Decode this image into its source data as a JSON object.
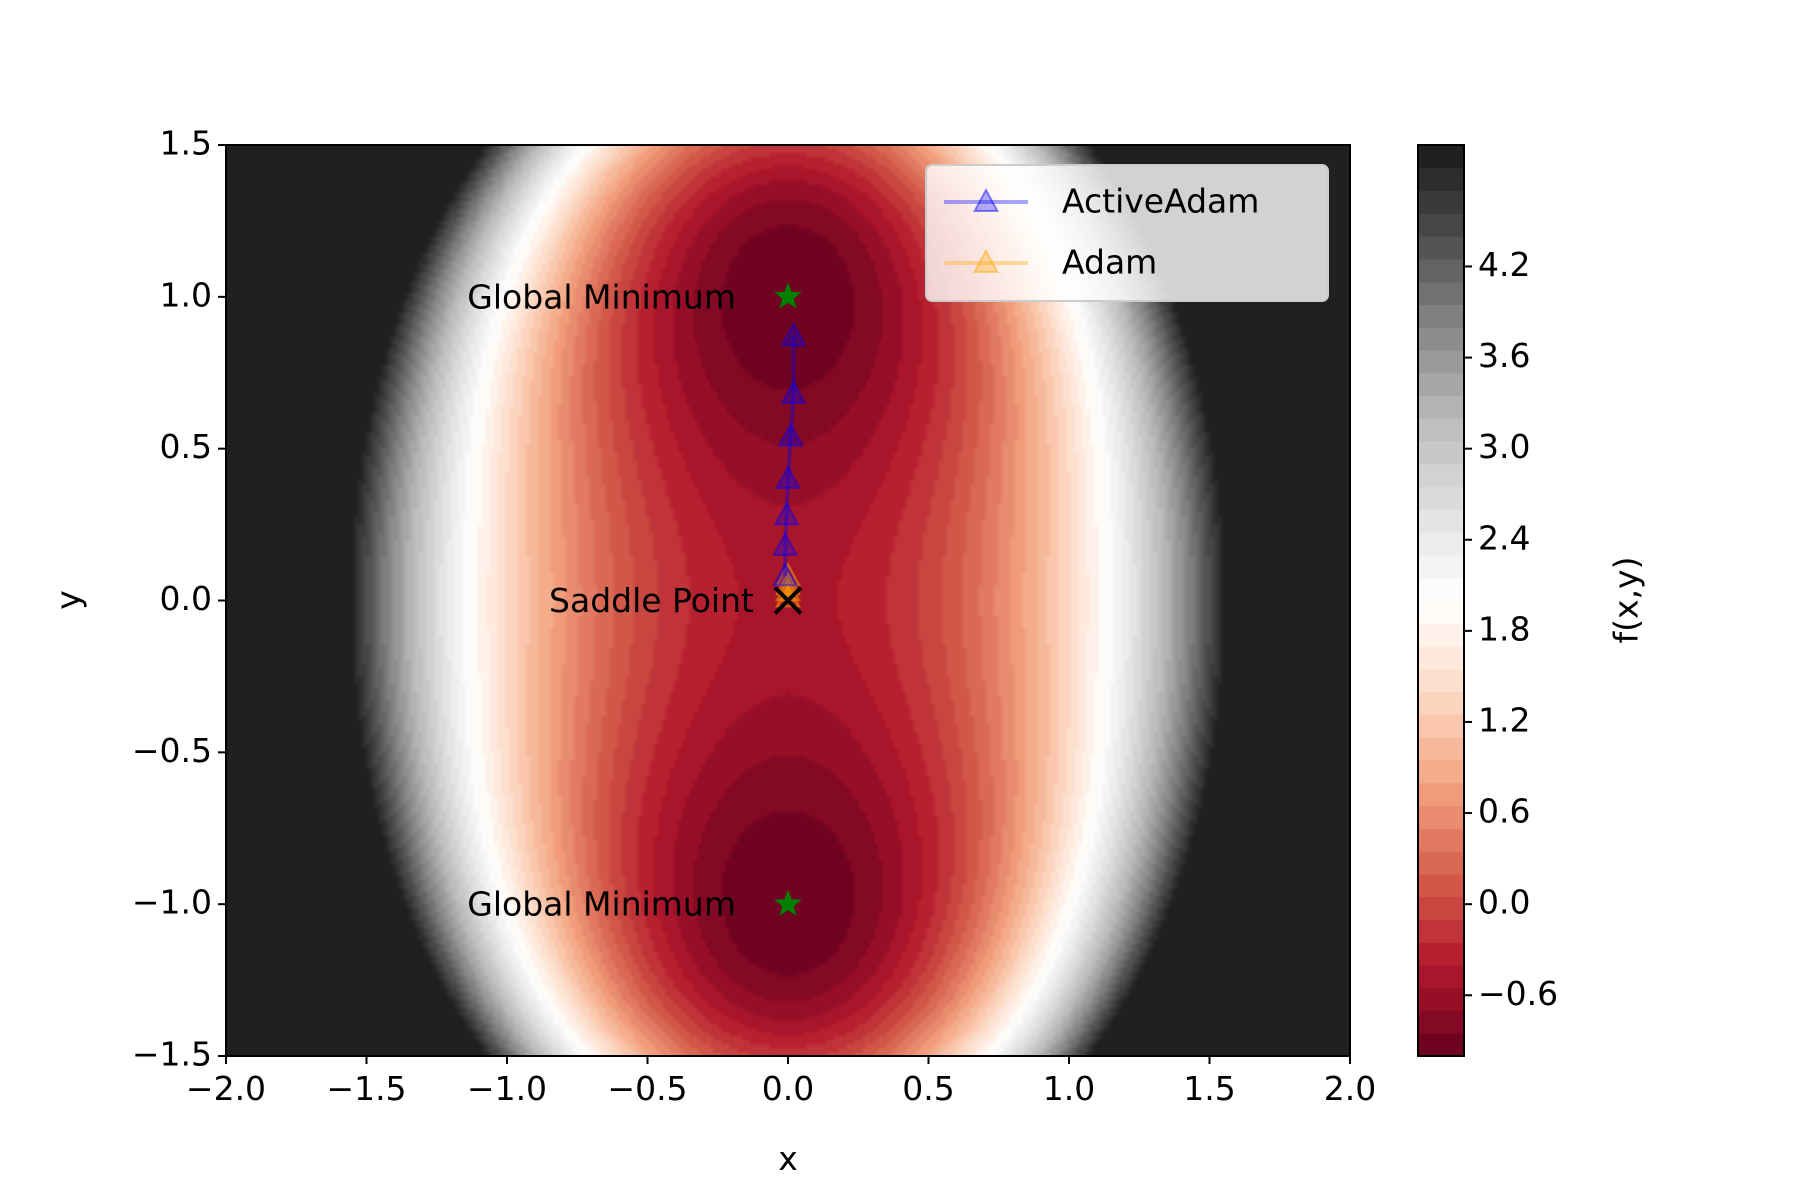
{
  "chart_data": {
    "type": "contour",
    "xlabel": "x",
    "ylabel": "y",
    "xlim": [
      -2.0,
      2.0
    ],
    "ylim": [
      -1.5,
      1.5
    ],
    "xticks": [
      "−2.0",
      "−1.5",
      "−1.0",
      "−0.5",
      "0.0",
      "0.5",
      "1.0",
      "1.5",
      "2.0"
    ],
    "yticks": [
      "−1.5",
      "−1.0",
      "−0.5",
      "0.0",
      "0.5",
      "1.0",
      "1.5"
    ],
    "colorbar": {
      "label": "f(x,y)",
      "range": [
        -1.0,
        5.0
      ],
      "ticks": [
        "−0.6",
        "0.0",
        "0.6",
        "1.2",
        "1.8",
        "2.4",
        "3.0",
        "3.6",
        "4.2"
      ],
      "colormap": "RdGy"
    },
    "annotations": [
      {
        "text": "Global Minimum",
        "x": 0.0,
        "y": 1.0,
        "marker": "star",
        "color": "#008000"
      },
      {
        "text": "Global Minimum",
        "x": 0.0,
        "y": -1.0,
        "marker": "star",
        "color": "#008000"
      },
      {
        "text": "Saddle Point",
        "x": 0.0,
        "y": 0.0,
        "marker": "x",
        "color": "#000000"
      }
    ],
    "series": [
      {
        "name": "ActiveAdam",
        "color": "#0000ff",
        "marker": "triangle",
        "points": [
          [
            -0.01,
            0.08
          ],
          [
            -0.01,
            0.18
          ],
          [
            -0.005,
            0.28
          ],
          [
            0.0,
            0.4
          ],
          [
            0.01,
            0.54
          ],
          [
            0.02,
            0.68
          ],
          [
            0.02,
            0.87
          ]
        ]
      },
      {
        "name": "Adam",
        "color": "#ffa500",
        "marker": "triangle",
        "points": [
          [
            0.0,
            0.01
          ],
          [
            0.0,
            0.03
          ],
          [
            0.0,
            0.05
          ],
          [
            0.0,
            0.08
          ]
        ]
      }
    ],
    "legend": {
      "placement": "top-right"
    }
  }
}
